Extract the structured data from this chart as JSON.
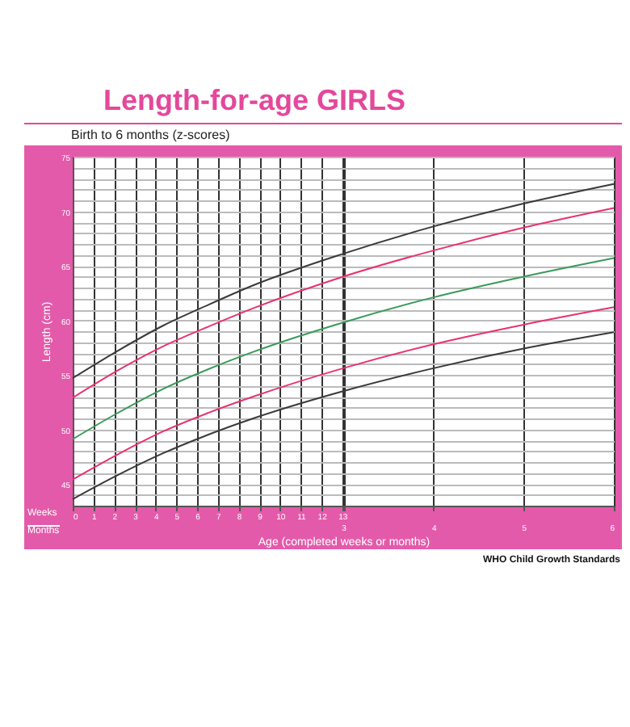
{
  "chart_data": {
    "type": "line",
    "title": "Length-for-age GIRLS",
    "subtitle": "Birth to 6 months (z-scores)",
    "xlabel": "Age (completed weeks or months)",
    "ylabel": "Length (cm)",
    "x": [
      0,
      2.17,
      4.35,
      6.52,
      8.7,
      13.04,
      17.39,
      21.74,
      26.09
    ],
    "series": [
      {
        "color": "#3a3a3a",
        "values": [
          54.7,
          57.2,
          59.5,
          61.4,
          63.2,
          66.1,
          68.6,
          70.7,
          72.5
        ]
      },
      {
        "color": "#e8336e",
        "values": [
          52.9,
          55.4,
          57.6,
          59.4,
          61.1,
          64.0,
          66.4,
          68.5,
          70.3
        ]
      },
      {
        "color": "#3a9a5a",
        "values": [
          49.1,
          51.5,
          53.7,
          55.5,
          57.1,
          59.8,
          62.1,
          64.0,
          65.7
        ]
      },
      {
        "color": "#e8336e",
        "values": [
          45.4,
          47.7,
          49.8,
          51.5,
          53.0,
          55.6,
          57.8,
          59.6,
          61.2
        ]
      },
      {
        "color": "#3a3a3a",
        "values": [
          43.6,
          45.8,
          47.8,
          49.5,
          51.0,
          53.5,
          55.6,
          57.4,
          58.9
        ]
      }
    ],
    "xlim": [
      0,
      26.09
    ],
    "xticks": [
      0,
      1,
      2,
      3,
      4,
      5,
      6,
      7,
      8,
      9,
      10,
      11,
      12,
      13
    ],
    "x2lim": [
      0,
      6
    ],
    "x2ticks": [
      3,
      4,
      5,
      6
    ],
    "ylim": [
      43,
      75
    ],
    "yticks": [
      {
        "value": 43,
        "label": null
      },
      {
        "value": 44,
        "label": null
      },
      45,
      {
        "value": 46,
        "label": null
      },
      {
        "value": 47,
        "label": null
      },
      {
        "value": 48,
        "label": null
      },
      {
        "value": 49,
        "label": null
      },
      50,
      {
        "value": 51,
        "label": null
      },
      {
        "value": 52,
        "label": null
      },
      {
        "value": 53,
        "label": null
      },
      {
        "value": 54,
        "label": null
      },
      55,
      {
        "value": 56,
        "label": null
      },
      {
        "value": 57,
        "label": null
      },
      {
        "value": 58,
        "label": null
      },
      {
        "value": 59,
        "label": null
      },
      60,
      {
        "value": 61,
        "label": null
      },
      {
        "value": 62,
        "label": null
      },
      {
        "value": 63,
        "label": null
      },
      {
        "value": 64,
        "label": null
      },
      65,
      {
        "value": 66,
        "label": null
      },
      {
        "value": 67,
        "label": null
      },
      {
        "value": 68,
        "label": null
      },
      {
        "value": 69,
        "label": null
      },
      70,
      {
        "value": 71,
        "label": null
      },
      {
        "value": 72,
        "label": null
      },
      {
        "value": 73,
        "label": null
      },
      {
        "value": 74,
        "label": null
      },
      75
    ],
    "grid": true,
    "marker": "none",
    "line_style": "solid",
    "annotations": [
      "Weeks",
      "Months",
      "WHO Child Growth Standards"
    ]
  }
}
